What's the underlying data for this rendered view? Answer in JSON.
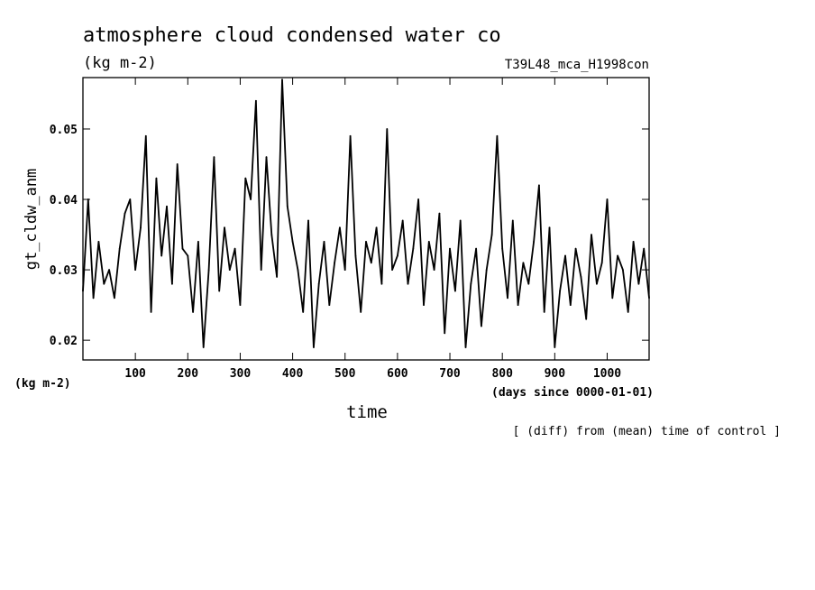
{
  "chart_data": {
    "type": "line",
    "title": "atmosphere cloud condensed water co",
    "subtitle": "(kg m-2)",
    "run_label": "T39L48_mca_H1998con",
    "ylabel": "gt_cldw_anm",
    "yunit": "(kg m-2)",
    "xlabel": "time",
    "xunit": "(days since 0000-01-01)",
    "note": "[ (diff) from (mean) time of control ]",
    "xlim": [
      0,
      1080
    ],
    "ylim": [
      0.0172,
      0.0573
    ],
    "xticks": [
      100,
      200,
      300,
      400,
      500,
      600,
      700,
      800,
      900,
      1000
    ],
    "xtick_labels": [
      "100",
      "200",
      "300",
      "400",
      "500",
      "600",
      "700",
      "800",
      "900",
      "1000"
    ],
    "yticks": [
      0.02,
      0.03,
      0.04,
      0.05
    ],
    "ytick_labels": [
      "0.02",
      "0.03",
      "0.04",
      "0.05"
    ],
    "line_color": "#000000",
    "series": [
      {
        "x": [
          0,
          10,
          20,
          30,
          40,
          50,
          60,
          70,
          80,
          90,
          100,
          110,
          120,
          130,
          140,
          150,
          160,
          170,
          180,
          190,
          200,
          210,
          220,
          230,
          240,
          250,
          260,
          270,
          280,
          290,
          300,
          310,
          320,
          330,
          340,
          350,
          360,
          370,
          380,
          390,
          400,
          410,
          420,
          430,
          440,
          450,
          460,
          470,
          480,
          490,
          500,
          510,
          520,
          530,
          540,
          550,
          560,
          570,
          580,
          590,
          600,
          610,
          620,
          630,
          640,
          650,
          660,
          670,
          680,
          690,
          700,
          710,
          720,
          730,
          740,
          750,
          760,
          770,
          780,
          790,
          800,
          810,
          820,
          830,
          840,
          850,
          860,
          870,
          880,
          890,
          900,
          910,
          920,
          930,
          940,
          950,
          960,
          970,
          980,
          990,
          1000,
          1010,
          1020,
          1030,
          1040,
          1050,
          1060,
          1070,
          1080
        ],
        "values": [
          0.027,
          0.04,
          0.026,
          0.034,
          0.028,
          0.03,
          0.026,
          0.033,
          0.038,
          0.04,
          0.03,
          0.036,
          0.049,
          0.024,
          0.043,
          0.032,
          0.039,
          0.028,
          0.045,
          0.033,
          0.032,
          0.024,
          0.034,
          0.019,
          0.03,
          0.046,
          0.027,
          0.036,
          0.03,
          0.033,
          0.025,
          0.043,
          0.04,
          0.054,
          0.03,
          0.046,
          0.035,
          0.029,
          0.057,
          0.039,
          0.034,
          0.03,
          0.024,
          0.037,
          0.019,
          0.028,
          0.034,
          0.025,
          0.031,
          0.036,
          0.03,
          0.049,
          0.032,
          0.024,
          0.034,
          0.031,
          0.036,
          0.028,
          0.05,
          0.03,
          0.032,
          0.037,
          0.028,
          0.033,
          0.04,
          0.025,
          0.034,
          0.03,
          0.038,
          0.021,
          0.033,
          0.027,
          0.037,
          0.019,
          0.028,
          0.033,
          0.022,
          0.03,
          0.035,
          0.049,
          0.033,
          0.026,
          0.037,
          0.025,
          0.031,
          0.028,
          0.034,
          0.042,
          0.024,
          0.036,
          0.019,
          0.027,
          0.032,
          0.025,
          0.033,
          0.029,
          0.023,
          0.035,
          0.028,
          0.031,
          0.04,
          0.026,
          0.032,
          0.03,
          0.024,
          0.034,
          0.028,
          0.033,
          0.026
        ]
      }
    ]
  }
}
